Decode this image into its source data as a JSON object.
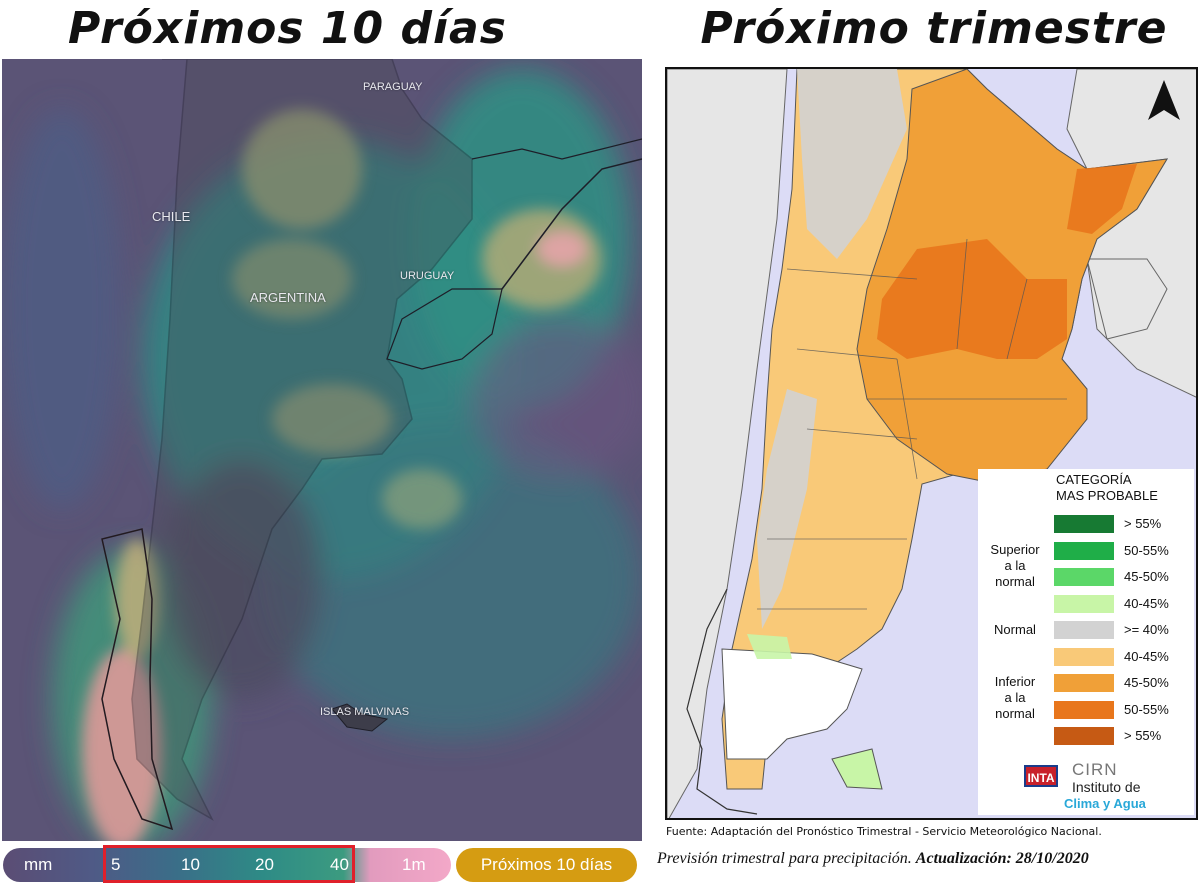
{
  "left_panel": {
    "heading": "Próximos 10 días",
    "labels": {
      "paraguay": "PARAGUAY",
      "chile": "CHILE",
      "argentina": "ARGENTINA",
      "uruguay": "URUGUAY",
      "malvinas": "ISLAS MALVINAS"
    },
    "legend": {
      "unit": "mm",
      "ticks": [
        "5",
        "10",
        "20",
        "40",
        "1m"
      ]
    },
    "button_label": "Próximos 10 días"
  },
  "right_panel": {
    "heading": "Próximo trimestre",
    "legend": {
      "title_line1": "CATEGORÍA",
      "title_line2": "MAS PROBABLE",
      "groups": {
        "superior": [
          "Superior",
          "a la",
          "normal"
        ],
        "normal": "Normal",
        "inferior": [
          "Inferior",
          "a la",
          "normal"
        ]
      },
      "items": [
        {
          "label": "> 55%",
          "color": "#177a33"
        },
        {
          "label": "50-55%",
          "color": "#1fae48"
        },
        {
          "label": "45-50%",
          "color": "#5bd768"
        },
        {
          "label": "40-45%",
          "color": "#c8f5a7"
        },
        {
          "label": ">= 40%",
          "color": "#d2d2d2"
        },
        {
          "label": "40-45%",
          "color": "#f9c978"
        },
        {
          "label": "45-50%",
          "color": "#f0a038"
        },
        {
          "label": "50-55%",
          "color": "#e8761c"
        },
        {
          "label": "> 55%",
          "color": "#c65a14"
        }
      ]
    },
    "logos": {
      "inta": "INTA",
      "cirn": "CIRN",
      "institute_line1": "Instituto de",
      "institute_line2": "Clima y Agua"
    },
    "source": "Fuente: Adaptación del Pronóstico Trimestral - Servicio Meteorológico Nacional.",
    "caption_italic": "Previsión trimestral para precipitación.",
    "caption_bold": "Actualización: 28/10/2020"
  }
}
